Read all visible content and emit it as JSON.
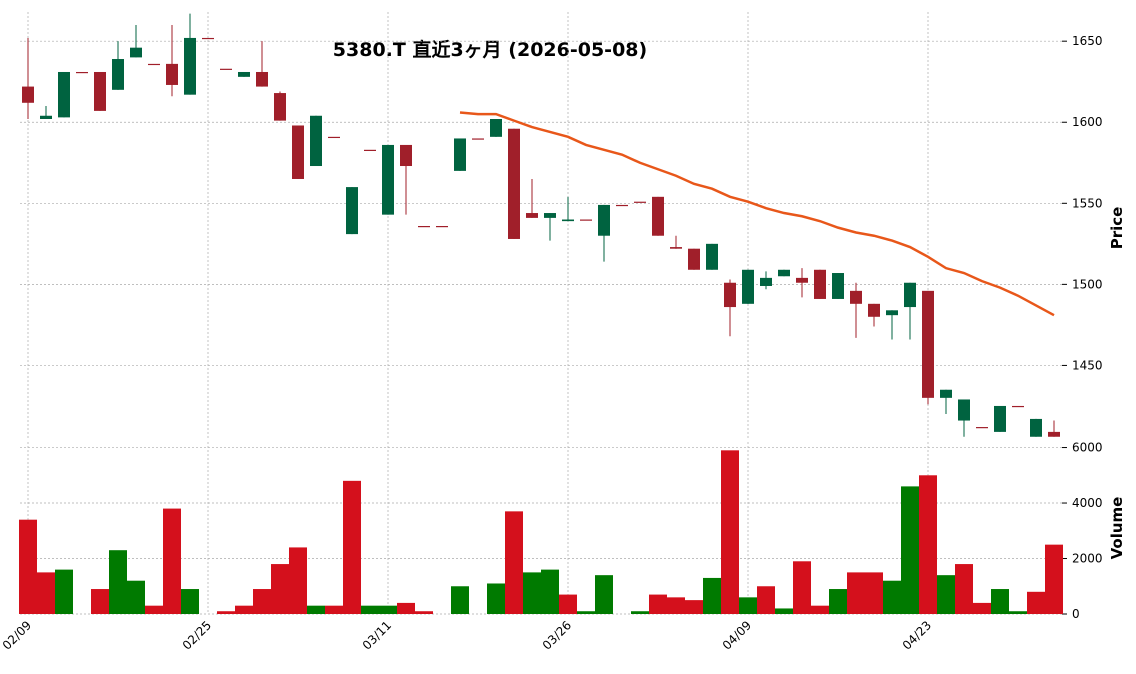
{
  "chart_data": {
    "type": "candlestick",
    "title": "5380.T 直近3ヶ月 (2026-05-08)",
    "ylabel": "Price",
    "categories": [
      "02/09",
      null,
      null,
      null,
      null,
      null,
      null,
      null,
      null,
      null,
      "02/25",
      null,
      null,
      null,
      null,
      null,
      null,
      null,
      null,
      null,
      "03/11",
      null,
      null,
      null,
      null,
      null,
      null,
      null,
      null,
      null,
      "03/26",
      null,
      null,
      null,
      null,
      null,
      null,
      null,
      null,
      null,
      "04/09",
      null,
      null,
      null,
      null,
      null,
      null,
      null,
      null,
      null,
      "04/23",
      null,
      null,
      null,
      null,
      null,
      null,
      null
    ],
    "open": [
      1622,
      1602,
      1603,
      1631,
      1631,
      1620,
      1640,
      1636,
      1636,
      1617,
      1652,
      1633,
      1628,
      1631,
      1618,
      1598,
      1573,
      1591,
      1531,
      1583,
      1543,
      1586,
      1536,
      1536,
      1570,
      1590,
      1591,
      1596,
      1544,
      1541,
      1539,
      1540,
      1530,
      1549,
      1551,
      1554,
      1523,
      1522,
      1509,
      1501,
      1488,
      1499,
      1505,
      1504,
      1509,
      1491,
      1496,
      1488,
      1481,
      1486,
      1496,
      1430,
      1416,
      1412,
      1409,
      1425,
      1406,
      1409
    ],
    "high": [
      1652,
      1610,
      1631,
      1631,
      1631,
      1650,
      1660,
      1636,
      1660,
      1667,
      1652,
      1633,
      1631,
      1650,
      1619,
      1598,
      1604,
      1591,
      1560,
      1583,
      1586,
      1586,
      1536,
      1536,
      1590,
      1590,
      1602,
      1596,
      1565,
      1544,
      1554,
      1540,
      1549,
      1549,
      1551,
      1554,
      1530,
      1522,
      1525,
      1503,
      1509,
      1508,
      1509,
      1510,
      1509,
      1507,
      1501,
      1488,
      1484,
      1501,
      1496,
      1435,
      1429,
      1412,
      1425,
      1425,
      1417,
      1416
    ],
    "low": [
      1602,
      1602,
      1603,
      1631,
      1607,
      1620,
      1640,
      1636,
      1616,
      1617,
      1652,
      1633,
      1628,
      1622,
      1601,
      1565,
      1573,
      1591,
      1531,
      1583,
      1543,
      1543,
      1536,
      1536,
      1570,
      1590,
      1591,
      1528,
      1541,
      1527,
      1539,
      1540,
      1514,
      1549,
      1551,
      1530,
      1522,
      1509,
      1509,
      1468,
      1488,
      1497,
      1505,
      1492,
      1491,
      1491,
      1467,
      1474,
      1466,
      1466,
      1426,
      1420,
      1406,
      1412,
      1409,
      1425,
      1406,
      1406
    ],
    "close": [
      1612,
      1604,
      1631,
      1631,
      1607,
      1639,
      1646,
      1636,
      1623,
      1652,
      1652,
      1633,
      1631,
      1622,
      1601,
      1565,
      1604,
      1591,
      1560,
      1583,
      1586,
      1573,
      1536,
      1536,
      1590,
      1590,
      1602,
      1528,
      1541,
      1544,
      1540,
      1540,
      1549,
      1549,
      1551,
      1530,
      1522,
      1509,
      1525,
      1486,
      1509,
      1504,
      1509,
      1501,
      1491,
      1507,
      1488,
      1480,
      1484,
      1501,
      1430,
      1435,
      1429,
      1412,
      1425,
      1425,
      1417,
      1406
    ],
    "up_color": "#006340",
    "down_color": "#a01f2a",
    "ylim": [
      1404,
      1668
    ],
    "yticks": [
      1450,
      1500,
      1550,
      1600,
      1650
    ],
    "grid": true,
    "ma": {
      "color": "#e8571a",
      "values": [
        null,
        null,
        null,
        null,
        null,
        null,
        null,
        null,
        null,
        null,
        null,
        null,
        null,
        null,
        null,
        null,
        null,
        null,
        null,
        null,
        null,
        null,
        null,
        null,
        1606,
        1605,
        1605,
        1601,
        1597,
        1594,
        1591,
        1586,
        1583,
        1580,
        1575,
        1571,
        1567,
        1562,
        1559,
        1554,
        1551,
        1547,
        1544,
        1542,
        1539,
        1535,
        1532,
        1530,
        1527,
        1523,
        1517,
        1510,
        1507,
        1502,
        1498,
        1493,
        1487,
        1481
      ]
    },
    "volume": {
      "ylabel": "Volume",
      "up_color": "#007a00",
      "down_color": "#d4101c",
      "values": [
        3400,
        1500,
        1600,
        0,
        900,
        2300,
        1200,
        300,
        3800,
        900,
        0,
        100,
        300,
        900,
        1800,
        2400,
        300,
        300,
        4800,
        300,
        300,
        400,
        100,
        0,
        1000,
        0,
        1100,
        3700,
        1500,
        1600,
        700,
        100,
        1400,
        0,
        100,
        700,
        600,
        500,
        1300,
        5900,
        600,
        1000,
        200,
        1900,
        300,
        900,
        1500,
        1500,
        1200,
        4600,
        5000,
        1400,
        1800,
        400,
        900,
        100,
        800,
        2500
      ],
      "ylim": [
        0,
        6200
      ],
      "yticks": [
        0,
        2000,
        4000,
        6000
      ]
    }
  }
}
